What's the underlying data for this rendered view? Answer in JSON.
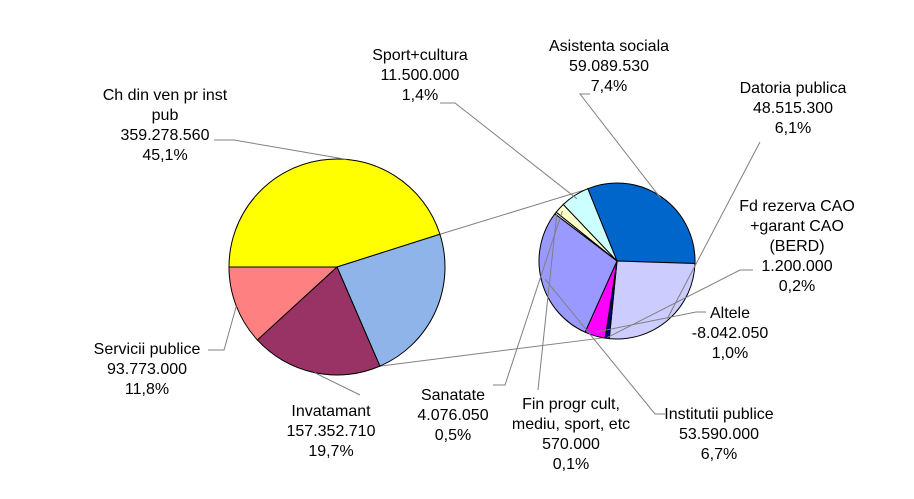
{
  "chart_data": {
    "type": "pie",
    "subtype": "pie-of-pie",
    "colors": {
      "ch_din_ven": "#ffff00",
      "asistenta": "#8eb4ea",
      "invatamant": "#993366",
      "servicii": "#ff8080",
      "bar_asistenta": "#0066cc",
      "bar_datoria": "#ccccff",
      "bar_fd_rezerva": "#000080",
      "bar_altele": "#ff00ff",
      "bar_institutii": "#9999ff",
      "bar_fin_progr": "#ffffcc",
      "bar_sanatate": "#ffffcc",
      "bar_sport": "#ccffff",
      "outline": "#000000",
      "leader": "#808080"
    },
    "slices": [
      {
        "key": "ch_din_ven",
        "name": "Ch din ven pr inst pub",
        "name_lines": [
          "Ch din ven pr inst",
          "pub"
        ],
        "value": "359.278.560",
        "percent": "45,1%",
        "pct": 45.1,
        "pie": "main"
      },
      {
        "key": "invatamant",
        "name": "Invatamant",
        "name_lines": [
          "Invatamant"
        ],
        "value": "157.352.710",
        "percent": "19,7%",
        "pct": 19.7,
        "pie": "main"
      },
      {
        "key": "servicii",
        "name": "Servicii publice",
        "name_lines": [
          "Servicii publice"
        ],
        "value": "93.773.000",
        "percent": "11,8%",
        "pct": 11.8,
        "pie": "main"
      },
      {
        "key": "asistenta",
        "name": "Asistenta sociala",
        "name_lines": [
          "Asistenta sociala"
        ],
        "value": "59.089.530",
        "percent": "7,4%",
        "pct": 7.4,
        "pie": "secondary"
      },
      {
        "key": "datoria",
        "name": "Datoria publica",
        "name_lines": [
          "Datoria publica"
        ],
        "value": "48.515.300",
        "percent": "6,1%",
        "pct": 6.1,
        "pie": "secondary"
      },
      {
        "key": "fd_rezerva",
        "name": "Fd rezerva CAO +garant CAO (BERD)",
        "name_lines": [
          "Fd rezerva CAO",
          "+garant CAO",
          "(BERD)"
        ],
        "value": "1.200.000",
        "percent": "0,2%",
        "pct": 0.2,
        "pie": "secondary"
      },
      {
        "key": "altele",
        "name": "Altele",
        "name_lines": [
          "Altele"
        ],
        "value": "-8.042.050",
        "percent": "1,0%",
        "pct": 1.0,
        "pie": "secondary"
      },
      {
        "key": "institutii",
        "name": "Institutii publice",
        "name_lines": [
          "Institutii publice"
        ],
        "value": "53.590.000",
        "percent": "6,7%",
        "pct": 6.7,
        "pie": "secondary"
      },
      {
        "key": "fin_progr",
        "name": "Fin progr cult, mediu, sport, etc",
        "name_lines": [
          "Fin progr cult,",
          "mediu, sport, etc"
        ],
        "value": "570.000",
        "percent": "0,1%",
        "pct": 0.1,
        "pie": "secondary"
      },
      {
        "key": "sanatate",
        "name": "Sanatate",
        "name_lines": [
          "Sanatate"
        ],
        "value": "4.076.050",
        "percent": "0,5%",
        "pct": 0.5,
        "pie": "secondary"
      },
      {
        "key": "sport",
        "name": "Sport+cultura",
        "name_lines": [
          "Sport+cultura"
        ],
        "value": "11.500.000",
        "percent": "1,4%",
        "pct": 1.4,
        "pie": "secondary"
      }
    ]
  }
}
